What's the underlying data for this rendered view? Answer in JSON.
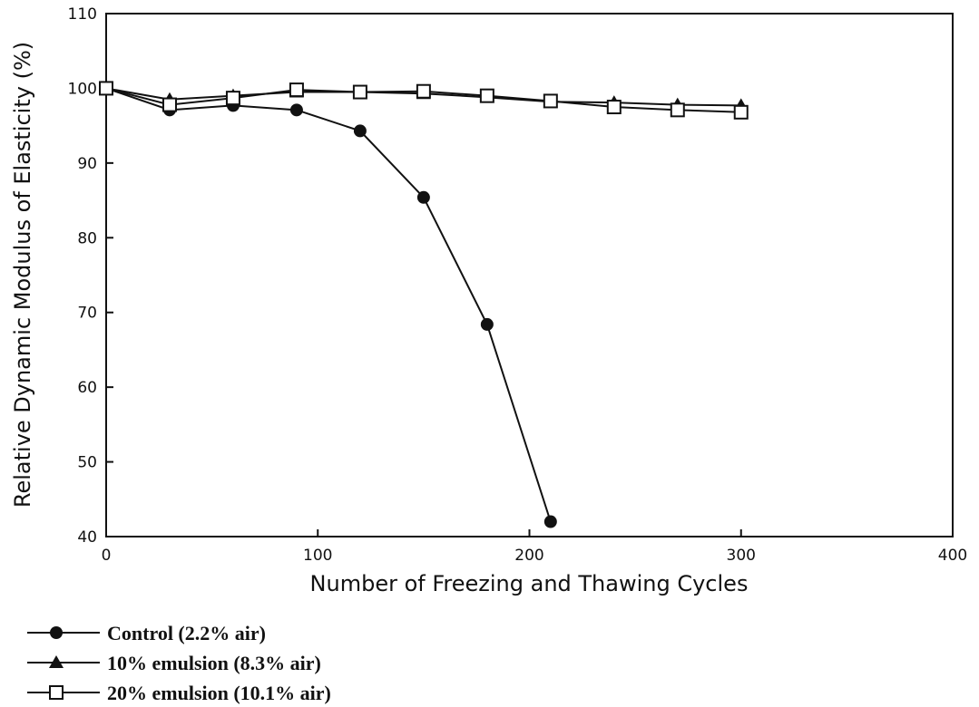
{
  "chart_data": {
    "type": "line",
    "xlabel": "Number of Freezing and Thawing Cycles",
    "ylabel": "Relative Dynamic Modulus of Elasticity (%)",
    "x": [
      0,
      30,
      60,
      90,
      120,
      150,
      180,
      210,
      240,
      270,
      300
    ],
    "series": [
      {
        "name": "Control (2.2% air)",
        "marker": "circle",
        "color": "#111111",
        "values": [
          100,
          97.1,
          97.7,
          97.1,
          94.3,
          85.4,
          68.4,
          42,
          null,
          null,
          null
        ]
      },
      {
        "name": "10% emulsion (8.3% air)",
        "marker": "triangle",
        "color": "#111111",
        "values": [
          100,
          98.5,
          99,
          99.5,
          99.5,
          99.3,
          98.8,
          98.2,
          98.1,
          97.8,
          97.7
        ]
      },
      {
        "name": "20% emulsion (10.1% air)",
        "marker": "square",
        "color": "#111111",
        "values": [
          100,
          97.8,
          98.7,
          99.8,
          99.5,
          99.6,
          99,
          98.3,
          97.5,
          97.1,
          96.8
        ]
      }
    ],
    "xlim": [
      0,
      400
    ],
    "xticks": [
      0,
      100,
      200,
      300,
      400
    ],
    "ylim": [
      40,
      110
    ],
    "yticks": [
      40,
      50,
      60,
      70,
      80,
      90,
      100,
      110
    ]
  }
}
